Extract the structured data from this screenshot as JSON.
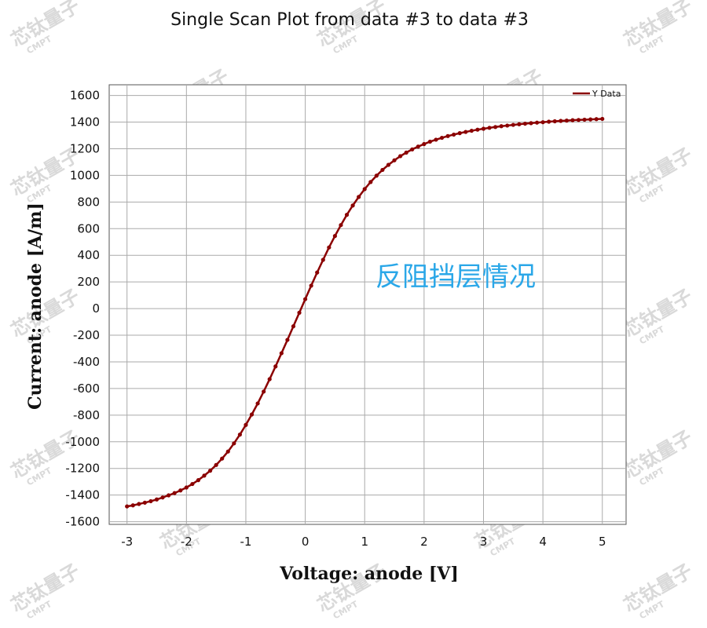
{
  "chart_data": {
    "type": "line",
    "title": "Single Scan Plot from data #3 to data #3",
    "xlabel": "Voltage: anode [V]",
    "ylabel": "Current: anode [A/m]",
    "xlim": [
      -3.3,
      5.4
    ],
    "ylim": [
      -1620,
      1680
    ],
    "x_ticks": [
      -3,
      -2,
      -1,
      0,
      1,
      2,
      3,
      4,
      5
    ],
    "y_ticks": [
      1600,
      1400,
      1200,
      1000,
      800,
      600,
      400,
      200,
      0,
      -200,
      -400,
      -600,
      -800,
      -1000,
      -1200,
      -1400,
      -1600
    ],
    "grid": true,
    "legend_position": "top-right",
    "annotation": "反阻挡层情况",
    "series": [
      {
        "name": "Y Data",
        "color": "#8b0000",
        "x": [
          -3.0,
          -2.9,
          -2.8,
          -2.7,
          -2.6,
          -2.5,
          -2.4,
          -2.3,
          -2.2,
          -2.1,
          -2.0,
          -1.9,
          -1.8,
          -1.7,
          -1.6,
          -1.5,
          -1.4,
          -1.3,
          -1.2,
          -1.1,
          -1.0,
          -0.9,
          -0.8,
          -0.7,
          -0.6,
          -0.5,
          -0.4,
          -0.3,
          -0.2,
          -0.1,
          0.0,
          0.1,
          0.2,
          0.3,
          0.4,
          0.5,
          0.6,
          0.7,
          0.8,
          0.9,
          1.0,
          1.1,
          1.2,
          1.3,
          1.4,
          1.5,
          1.6,
          1.7,
          1.8,
          1.9,
          2.0,
          2.1,
          2.2,
          2.3,
          2.4,
          2.5,
          2.6,
          2.7,
          2.8,
          2.9,
          3.0,
          3.1,
          3.2,
          3.3,
          3.4,
          3.5,
          3.6,
          3.7,
          3.8,
          3.9,
          4.0,
          4.1,
          4.2,
          4.3,
          4.4,
          4.5,
          4.6,
          4.7,
          4.8,
          4.9,
          5.0
        ],
        "values": [
          -1485,
          -1477,
          -1467,
          -1457,
          -1446,
          -1433,
          -1418,
          -1402,
          -1385,
          -1365,
          -1343,
          -1317,
          -1288,
          -1254,
          -1217,
          -1174,
          -1126,
          -1073,
          -1012,
          -946,
          -873,
          -795,
          -712,
          -623,
          -530,
          -434,
          -335,
          -235,
          -133,
          -31,
          71,
          172,
          271,
          366,
          459,
          545,
          627,
          704,
          774,
          838,
          897,
          950,
          998,
          1041,
          1079,
          1113,
          1144,
          1171,
          1195,
          1216,
          1235,
          1253,
          1268,
          1282,
          1295,
          1306,
          1317,
          1326,
          1335,
          1343,
          1350,
          1357,
          1363,
          1369,
          1374,
          1379,
          1384,
          1388,
          1392,
          1396,
          1399,
          1403,
          1406,
          1409,
          1411,
          1414,
          1416,
          1418,
          1420,
          1422,
          1424
        ]
      }
    ]
  },
  "watermark": {
    "text": "芯钛量子",
    "sub": "CMPT"
  },
  "colors": {
    "annotation": "#2aa7e8",
    "grid": "#aaaaaa",
    "series": "#8b0000"
  }
}
